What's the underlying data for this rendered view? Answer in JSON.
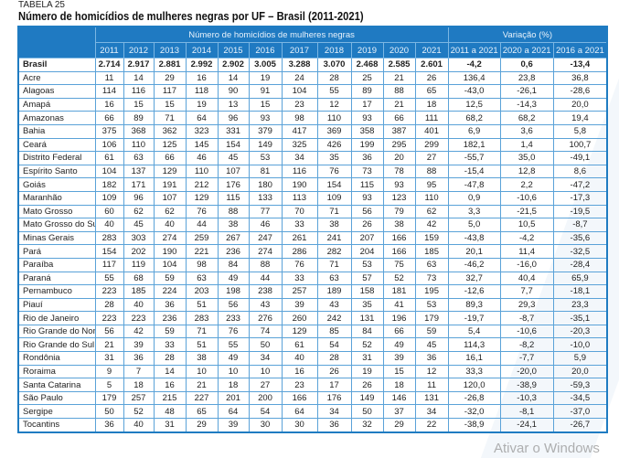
{
  "caption": "TABELA 25",
  "title": "Número de homicídios de mulheres negras por UF – Brasil (2011-2021)",
  "header": {
    "group1": "Número de homicídios de mulheres negras",
    "group2": "Variação (%)",
    "years": [
      "2011",
      "2012",
      "2013",
      "2014",
      "2015",
      "2016",
      "2017",
      "2018",
      "2019",
      "2020",
      "2021"
    ],
    "variations": [
      "2011 a 2021",
      "2020 a 2021",
      "2016 a 2021"
    ]
  },
  "rows": [
    [
      "Brasil",
      "2.714",
      "2.917",
      "2.881",
      "2.992",
      "2.902",
      "3.005",
      "3.288",
      "3.070",
      "2.468",
      "2.585",
      "2.601",
      "-4,2",
      "0,6",
      "-13,4"
    ],
    [
      "Acre",
      "11",
      "14",
      "29",
      "16",
      "14",
      "19",
      "24",
      "28",
      "25",
      "21",
      "26",
      "136,4",
      "23,8",
      "36,8"
    ],
    [
      "Alagoas",
      "114",
      "116",
      "117",
      "118",
      "90",
      "91",
      "104",
      "55",
      "89",
      "88",
      "65",
      "-43,0",
      "-26,1",
      "-28,6"
    ],
    [
      "Amapá",
      "16",
      "15",
      "15",
      "19",
      "13",
      "15",
      "23",
      "12",
      "17",
      "21",
      "18",
      "12,5",
      "-14,3",
      "20,0"
    ],
    [
      "Amazonas",
      "66",
      "89",
      "71",
      "64",
      "96",
      "93",
      "98",
      "110",
      "93",
      "66",
      "111",
      "68,2",
      "68,2",
      "19,4"
    ],
    [
      "Bahia",
      "375",
      "368",
      "362",
      "323",
      "331",
      "379",
      "417",
      "369",
      "358",
      "387",
      "401",
      "6,9",
      "3,6",
      "5,8"
    ],
    [
      "Ceará",
      "106",
      "110",
      "125",
      "145",
      "154",
      "149",
      "325",
      "426",
      "199",
      "295",
      "299",
      "182,1",
      "1,4",
      "100,7"
    ],
    [
      "Distrito Federal",
      "61",
      "63",
      "66",
      "46",
      "45",
      "53",
      "34",
      "35",
      "36",
      "20",
      "27",
      "-55,7",
      "35,0",
      "-49,1"
    ],
    [
      "Espírito Santo",
      "104",
      "137",
      "129",
      "110",
      "107",
      "81",
      "116",
      "76",
      "73",
      "78",
      "88",
      "-15,4",
      "12,8",
      "8,6"
    ],
    [
      "Goiás",
      "182",
      "171",
      "191",
      "212",
      "176",
      "180",
      "190",
      "154",
      "115",
      "93",
      "95",
      "-47,8",
      "2,2",
      "-47,2"
    ],
    [
      "Maranhão",
      "109",
      "96",
      "107",
      "129",
      "115",
      "133",
      "113",
      "109",
      "93",
      "123",
      "110",
      "0,9",
      "-10,6",
      "-17,3"
    ],
    [
      "Mato Grosso",
      "60",
      "62",
      "62",
      "76",
      "88",
      "77",
      "70",
      "71",
      "56",
      "79",
      "62",
      "3,3",
      "-21,5",
      "-19,5"
    ],
    [
      "Mato Grosso do Sul",
      "40",
      "45",
      "40",
      "44",
      "38",
      "46",
      "33",
      "38",
      "26",
      "38",
      "42",
      "5,0",
      "10,5",
      "-8,7"
    ],
    [
      "Minas Gerais",
      "283",
      "303",
      "274",
      "259",
      "267",
      "247",
      "261",
      "241",
      "207",
      "166",
      "159",
      "-43,8",
      "-4,2",
      "-35,6"
    ],
    [
      "Pará",
      "154",
      "202",
      "190",
      "221",
      "236",
      "274",
      "286",
      "282",
      "204",
      "166",
      "185",
      "20,1",
      "11,4",
      "-32,5"
    ],
    [
      "Paraíba",
      "117",
      "119",
      "104",
      "98",
      "84",
      "88",
      "76",
      "71",
      "53",
      "75",
      "63",
      "-46,2",
      "-16,0",
      "-28,4"
    ],
    [
      "Paraná",
      "55",
      "68",
      "59",
      "63",
      "49",
      "44",
      "33",
      "63",
      "57",
      "52",
      "73",
      "32,7",
      "40,4",
      "65,9"
    ],
    [
      "Pernambuco",
      "223",
      "185",
      "224",
      "203",
      "198",
      "238",
      "257",
      "189",
      "158",
      "181",
      "195",
      "-12,6",
      "7,7",
      "-18,1"
    ],
    [
      "Piauí",
      "28",
      "40",
      "36",
      "51",
      "56",
      "43",
      "39",
      "43",
      "35",
      "41",
      "53",
      "89,3",
      "29,3",
      "23,3"
    ],
    [
      "Rio de Janeiro",
      "223",
      "223",
      "236",
      "283",
      "233",
      "276",
      "260",
      "242",
      "131",
      "196",
      "179",
      "-19,7",
      "-8,7",
      "-35,1"
    ],
    [
      "Rio Grande do Norte",
      "56",
      "42",
      "59",
      "71",
      "76",
      "74",
      "129",
      "85",
      "84",
      "66",
      "59",
      "5,4",
      "-10,6",
      "-20,3"
    ],
    [
      "Rio Grande do Sul",
      "21",
      "39",
      "33",
      "51",
      "55",
      "50",
      "61",
      "54",
      "52",
      "49",
      "45",
      "114,3",
      "-8,2",
      "-10,0"
    ],
    [
      "Rondônia",
      "31",
      "36",
      "28",
      "38",
      "49",
      "34",
      "40",
      "28",
      "31",
      "39",
      "36",
      "16,1",
      "-7,7",
      "5,9"
    ],
    [
      "Roraima",
      "9",
      "7",
      "14",
      "10",
      "10",
      "10",
      "16",
      "26",
      "19",
      "15",
      "12",
      "33,3",
      "-20,0",
      "20,0"
    ],
    [
      "Santa Catarina",
      "5",
      "18",
      "16",
      "21",
      "18",
      "27",
      "23",
      "17",
      "26",
      "18",
      "11",
      "120,0",
      "-38,9",
      "-59,3"
    ],
    [
      "São Paulo",
      "179",
      "257",
      "215",
      "227",
      "201",
      "200",
      "166",
      "176",
      "149",
      "146",
      "131",
      "-26,8",
      "-10,3",
      "-34,5"
    ],
    [
      "Sergipe",
      "50",
      "52",
      "48",
      "65",
      "64",
      "54",
      "64",
      "34",
      "50",
      "37",
      "34",
      "-32,0",
      "-8,1",
      "-37,0"
    ],
    [
      "Tocantins",
      "36",
      "40",
      "31",
      "29",
      "39",
      "30",
      "30",
      "36",
      "32",
      "29",
      "22",
      "-38,9",
      "-24,1",
      "-26,7"
    ]
  ],
  "watermark": "Ativar o Windows"
}
